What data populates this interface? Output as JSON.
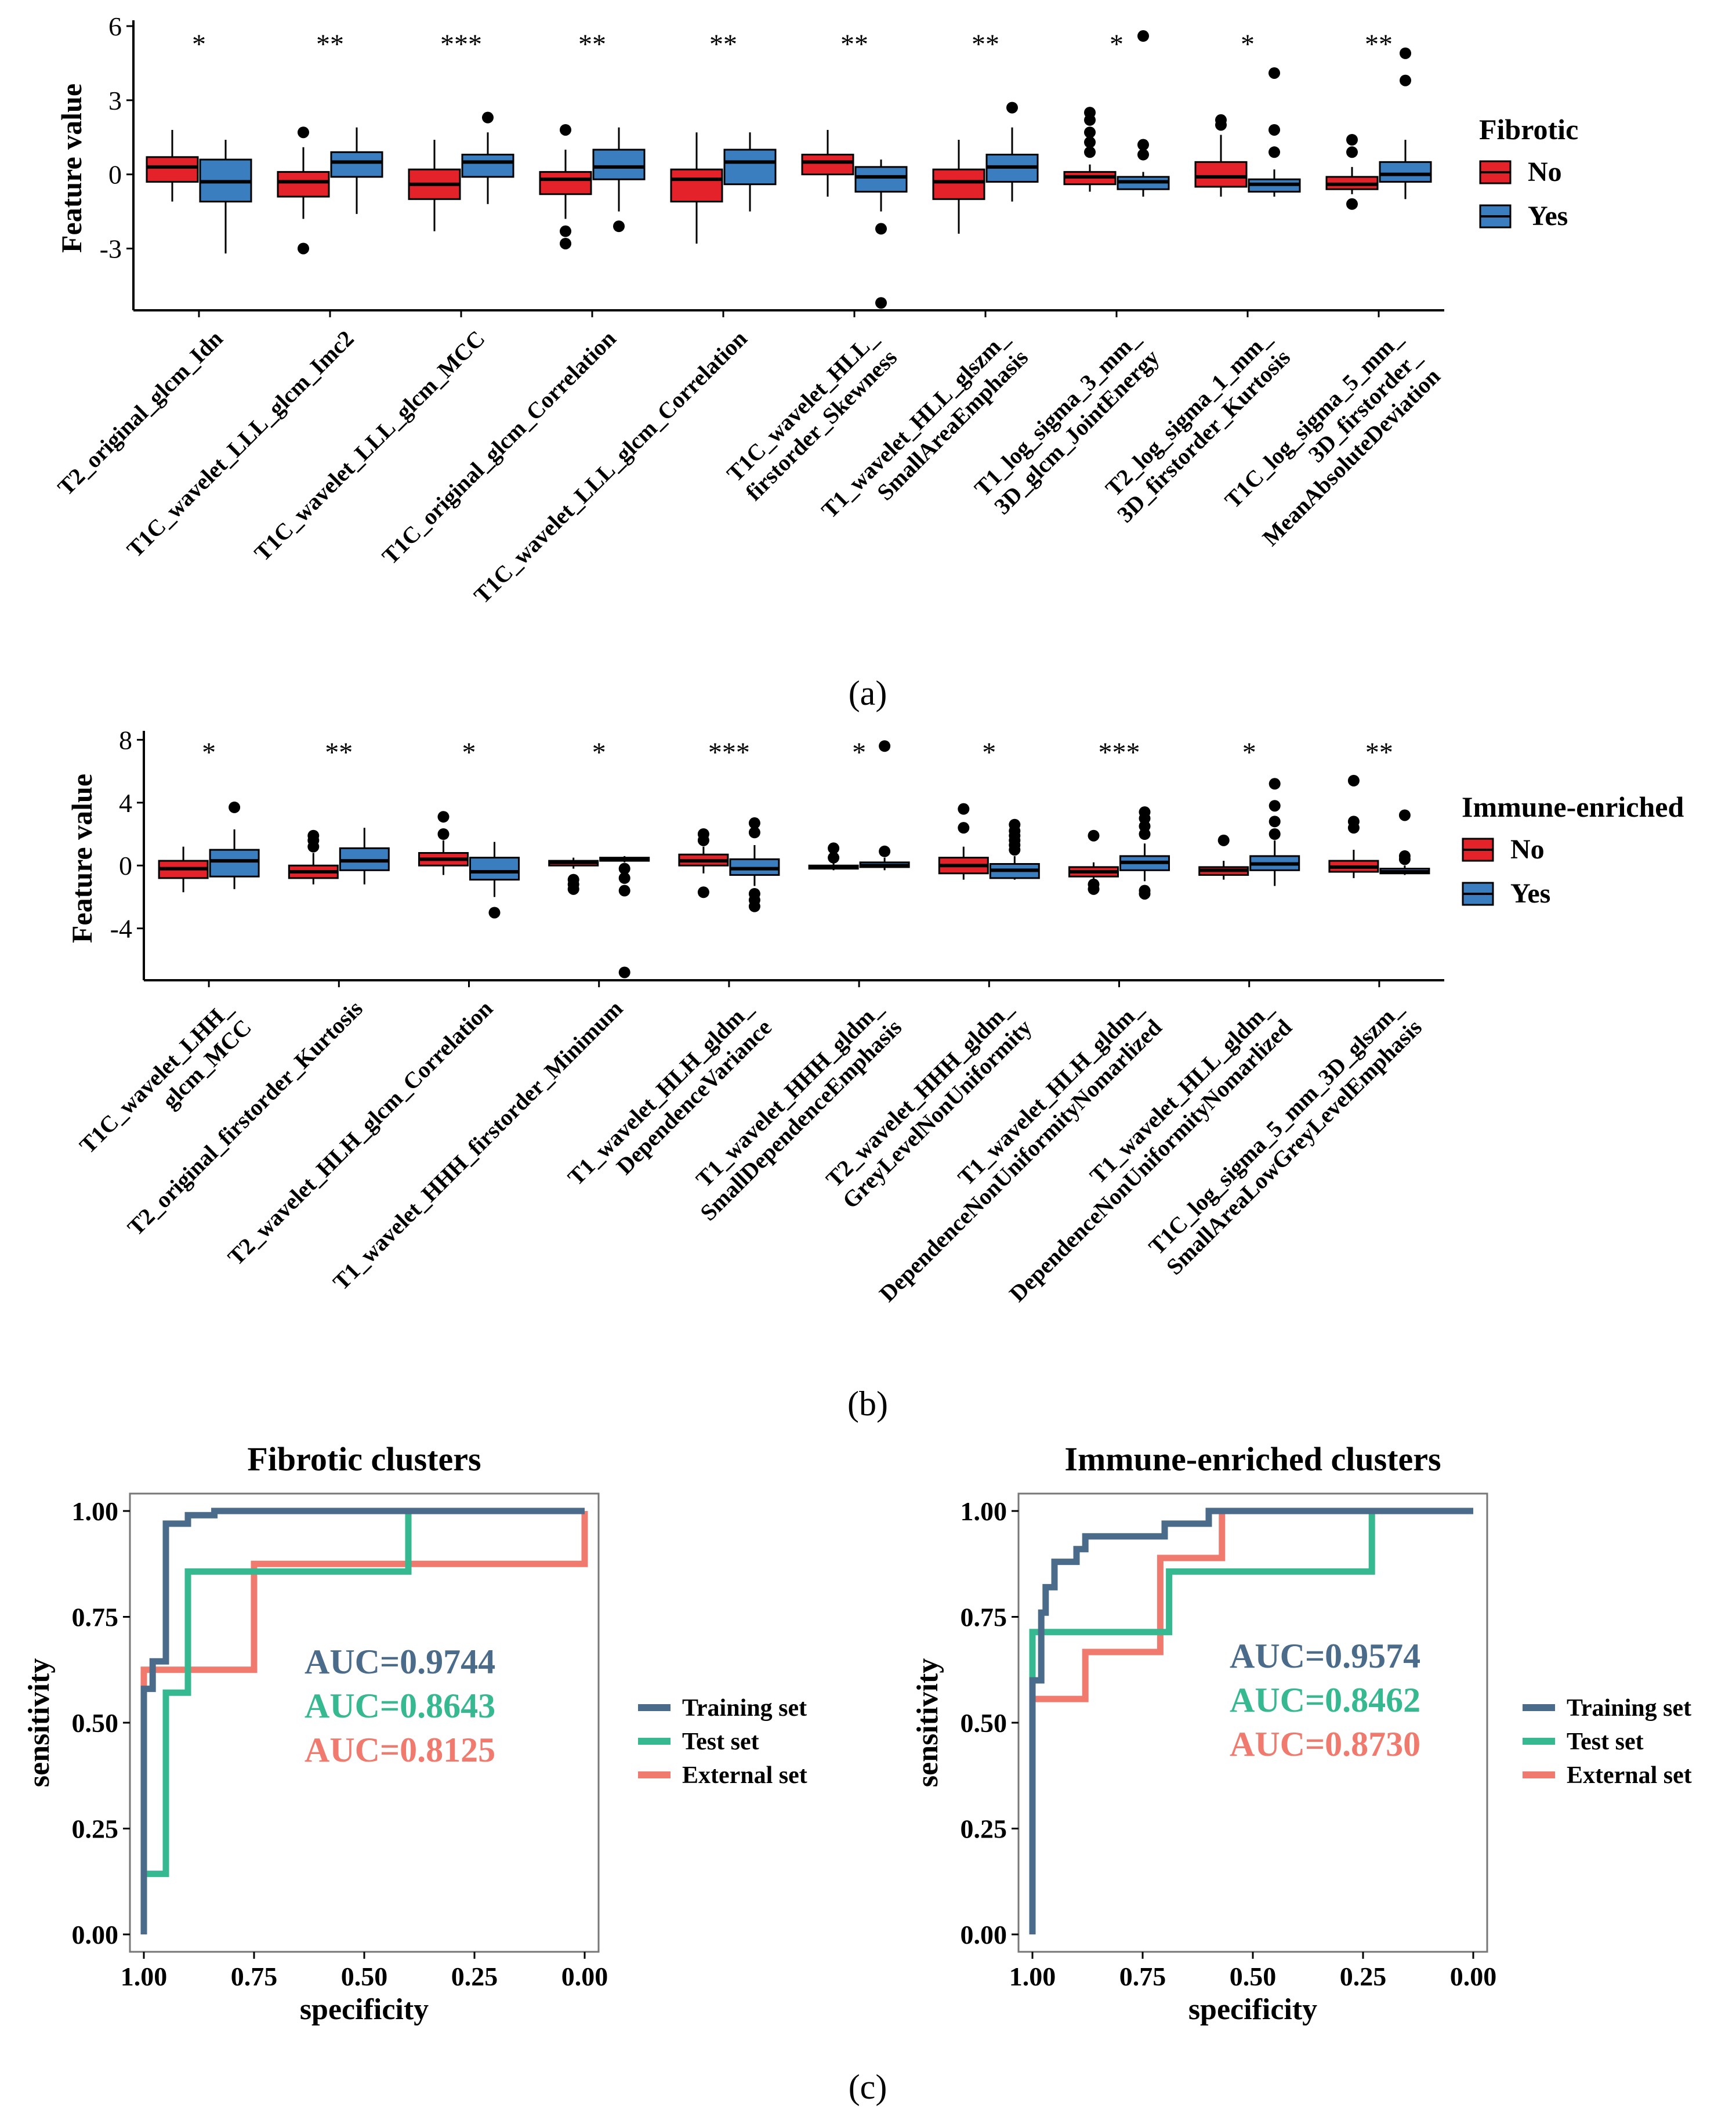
{
  "colors": {
    "no_fill": "#E4222A",
    "yes_fill": "#3A7EBF",
    "training": "#4A6B8A",
    "test": "#36B890",
    "external": "#F07A6E",
    "ink": "#000000"
  },
  "chart_data": [
    {
      "id": "a",
      "type": "box",
      "panel_label": "(a)",
      "ylabel": "Feature value",
      "ylim": [
        -5.5,
        6
      ],
      "yticks": [
        6,
        3,
        0,
        -3
      ],
      "ytick_labels": [
        "6",
        "3",
        "0",
        "-3"
      ],
      "legend": {
        "title": "Fibrotic",
        "entries": [
          "No",
          "Yes"
        ]
      },
      "categories": [
        {
          "label": [
            "T2_original_glcm_Idn"
          ],
          "sig": "*",
          "no": {
            "q1": -0.3,
            "med": 0.3,
            "q3": 0.7,
            "lo": -1.1,
            "hi": 1.8,
            "out": []
          },
          "yes": {
            "q1": -1.1,
            "med": -0.3,
            "q3": 0.6,
            "lo": -3.2,
            "hi": 1.4,
            "out": []
          }
        },
        {
          "label": [
            "T1C_wavelet_LLL_glcm_Imc2"
          ],
          "sig": "**",
          "no": {
            "q1": -0.9,
            "med": -0.3,
            "q3": 0.1,
            "lo": -1.8,
            "hi": 1.1,
            "out": [
              1.7,
              -3.0
            ]
          },
          "yes": {
            "q1": -0.1,
            "med": 0.5,
            "q3": 0.9,
            "lo": -1.6,
            "hi": 1.9,
            "out": []
          }
        },
        {
          "label": [
            "T1C_wavelet_LLL_glcm_MCC"
          ],
          "sig": "***",
          "no": {
            "q1": -1.0,
            "med": -0.4,
            "q3": 0.2,
            "lo": -2.3,
            "hi": 1.4,
            "out": []
          },
          "yes": {
            "q1": -0.1,
            "med": 0.5,
            "q3": 0.8,
            "lo": -1.2,
            "hi": 1.7,
            "out": [
              2.3
            ]
          }
        },
        {
          "label": [
            "T1C_original_glcm_Correlation"
          ],
          "sig": "**",
          "no": {
            "q1": -0.8,
            "med": -0.2,
            "q3": 0.1,
            "lo": -1.8,
            "hi": 1.0,
            "out": [
              1.8,
              -2.3,
              -2.8
            ]
          },
          "yes": {
            "q1": -0.2,
            "med": 0.3,
            "q3": 1.0,
            "lo": -1.5,
            "hi": 1.9,
            "out": [
              -2.1
            ]
          }
        },
        {
          "label": [
            "T1C_wavelet_LLL_glcm_Correlation"
          ],
          "sig": "**",
          "no": {
            "q1": -1.1,
            "med": -0.2,
            "q3": 0.2,
            "lo": -2.8,
            "hi": 1.7,
            "out": []
          },
          "yes": {
            "q1": -0.4,
            "med": 0.5,
            "q3": 1.0,
            "lo": -1.5,
            "hi": 1.7,
            "out": []
          }
        },
        {
          "label": [
            "T1C_wavelet_HLL_",
            "firstorder_Skewness"
          ],
          "sig": "**",
          "no": {
            "q1": 0.0,
            "med": 0.5,
            "q3": 0.8,
            "lo": -0.9,
            "hi": 1.8,
            "out": []
          },
          "yes": {
            "q1": -0.7,
            "med": -0.1,
            "q3": 0.3,
            "lo": -1.5,
            "hi": 0.6,
            "out": [
              -2.2,
              -5.2
            ]
          }
        },
        {
          "label": [
            "T1_wavelet_HLL_glszm_",
            "SmallAreaEmphasis"
          ],
          "sig": "**",
          "no": {
            "q1": -1.0,
            "med": -0.3,
            "q3": 0.2,
            "lo": -2.4,
            "hi": 1.4,
            "out": []
          },
          "yes": {
            "q1": -0.3,
            "med": 0.3,
            "q3": 0.8,
            "lo": -1.1,
            "hi": 1.9,
            "out": [
              2.7
            ]
          }
        },
        {
          "label": [
            "T1_log_sigma_3_mm_",
            "3D_glcm_JointEnergy"
          ],
          "sig": "*",
          "no": {
            "q1": -0.4,
            "med": -0.1,
            "q3": 0.1,
            "lo": -0.7,
            "hi": 0.4,
            "out": [
              0.9,
              1.3,
              1.7,
              2.2,
              2.5
            ]
          },
          "yes": {
            "q1": -0.6,
            "med": -0.3,
            "q3": -0.1,
            "lo": -0.9,
            "hi": 0.1,
            "out": [
              0.8,
              1.2,
              5.6
            ]
          }
        },
        {
          "label": [
            "T2_log_sigma_1_mm_",
            "3D_firstorder_Kurtosis"
          ],
          "sig": "*",
          "no": {
            "q1": -0.5,
            "med": -0.1,
            "q3": 0.5,
            "lo": -0.9,
            "hi": 1.6,
            "out": [
              2.0,
              2.2
            ]
          },
          "yes": {
            "q1": -0.7,
            "med": -0.4,
            "q3": -0.2,
            "lo": -0.9,
            "hi": 0.2,
            "out": [
              0.9,
              1.8,
              4.1
            ]
          }
        },
        {
          "label": [
            "T1C_log_sigma_5_mm_",
            "3D_firstorder_",
            "MeanAbsoluteDeviation"
          ],
          "sig": "**",
          "no": {
            "q1": -0.6,
            "med": -0.4,
            "q3": -0.1,
            "lo": -0.8,
            "hi": 0.3,
            "out": [
              0.9,
              1.4,
              -1.2
            ]
          },
          "yes": {
            "q1": -0.3,
            "med": 0.0,
            "q3": 0.5,
            "lo": -1.0,
            "hi": 1.4,
            "out": [
              3.8,
              4.9
            ]
          }
        }
      ]
    },
    {
      "id": "b",
      "type": "box",
      "panel_label": "(b)",
      "ylabel": "Feature value",
      "ylim": [
        -7.3,
        8.2
      ],
      "yticks": [
        8,
        4,
        0,
        -4
      ],
      "ytick_labels": [
        "8",
        "4",
        "0",
        "-4"
      ],
      "legend": {
        "title": "Immune-enriched",
        "entries": [
          "No",
          "Yes"
        ]
      },
      "categories": [
        {
          "label": [
            "T1C_wavelet_LHH_",
            "glcm_MCC"
          ],
          "sig": "*",
          "no": {
            "q1": -0.8,
            "med": -0.2,
            "q3": 0.3,
            "lo": -1.7,
            "hi": 1.2,
            "out": []
          },
          "yes": {
            "q1": -0.7,
            "med": 0.3,
            "q3": 1.0,
            "lo": -1.5,
            "hi": 2.3,
            "out": [
              3.7
            ]
          }
        },
        {
          "label": [
            "T2_original_firstorder_Kurtosis"
          ],
          "sig": "**",
          "no": {
            "q1": -0.8,
            "med": -0.4,
            "q3": 0.0,
            "lo": -1.2,
            "hi": 0.8,
            "out": [
              1.2,
              1.6,
              1.9
            ]
          },
          "yes": {
            "q1": -0.3,
            "med": 0.3,
            "q3": 1.1,
            "lo": -1.2,
            "hi": 2.4,
            "out": []
          }
        },
        {
          "label": [
            "T2_wavelet_HLH_glcm_Correlation"
          ],
          "sig": "*",
          "no": {
            "q1": 0.0,
            "med": 0.4,
            "q3": 0.8,
            "lo": -0.6,
            "hi": 1.6,
            "out": [
              2.0,
              3.1
            ]
          },
          "yes": {
            "q1": -0.9,
            "med": -0.4,
            "q3": 0.5,
            "lo": -2.0,
            "hi": 1.5,
            "out": [
              -3.0
            ]
          }
        },
        {
          "label": [
            "T1_wavelet_HHH_firstorder_Minimum"
          ],
          "sig": "*",
          "no": {
            "q1": 0.0,
            "med": 0.2,
            "q3": 0.3,
            "lo": -0.2,
            "hi": 0.5,
            "out": [
              -0.9,
              -1.2,
              -1.5
            ]
          },
          "yes": {
            "q1": 0.3,
            "med": 0.4,
            "q3": 0.5,
            "lo": 0.2,
            "hi": 0.6,
            "out": [
              -0.2,
              -0.8,
              -1.6,
              -6.8
            ]
          }
        },
        {
          "label": [
            "T1_wavelet_HLH_gldm_",
            "DependenceVariance"
          ],
          "sig": "***",
          "no": {
            "q1": 0.0,
            "med": 0.3,
            "q3": 0.7,
            "lo": -0.5,
            "hi": 1.2,
            "out": [
              1.6,
              2.0,
              -1.7
            ]
          },
          "yes": {
            "q1": -0.6,
            "med": -0.2,
            "q3": 0.4,
            "lo": -1.3,
            "hi": 1.3,
            "out": [
              2.1,
              2.7,
              -1.8,
              -2.2,
              -2.6
            ]
          }
        },
        {
          "label": [
            "T1_wavelet_HHH_gldm_",
            "SmallDependenceEmphasis"
          ],
          "sig": "*",
          "no": {
            "q1": -0.2,
            "med": -0.1,
            "q3": 0.0,
            "lo": -0.3,
            "hi": 0.2,
            "out": [
              0.5,
              1.1
            ]
          },
          "yes": {
            "q1": -0.1,
            "med": 0.0,
            "q3": 0.2,
            "lo": -0.3,
            "hi": 0.5,
            "out": [
              0.9,
              7.6
            ]
          }
        },
        {
          "label": [
            "T2_wavelet_HHH_gldm_",
            "GreyLevelNonUniformity"
          ],
          "sig": "*",
          "no": {
            "q1": -0.5,
            "med": 0.0,
            "q3": 0.5,
            "lo": -0.9,
            "hi": 1.2,
            "out": [
              2.4,
              3.6
            ]
          },
          "yes": {
            "q1": -0.8,
            "med": -0.3,
            "q3": 0.1,
            "lo": -0.9,
            "hi": 0.6,
            "out": [
              1.0,
              1.3,
              1.6,
              1.9,
              2.2,
              2.6
            ]
          }
        },
        {
          "label": [
            "T1_wavelet_HLH_gldm_",
            "DependenceNonUniformityNomarlized"
          ],
          "sig": "***",
          "no": {
            "q1": -0.7,
            "med": -0.4,
            "q3": -0.1,
            "lo": -0.9,
            "hi": 0.2,
            "out": [
              1.9,
              -1.2,
              -1.5
            ]
          },
          "yes": {
            "q1": -0.3,
            "med": 0.2,
            "q3": 0.6,
            "lo": -1.0,
            "hi": 1.4,
            "out": [
              2.0,
              2.5,
              3.0,
              3.4,
              -1.6,
              -1.8
            ]
          }
        },
        {
          "label": [
            "T1_wavelet_HLL_gldm_",
            "DependenceNonUniformityNomarlized"
          ],
          "sig": "*",
          "no": {
            "q1": -0.6,
            "med": -0.3,
            "q3": -0.1,
            "lo": -0.9,
            "hi": 0.3,
            "out": [
              1.6
            ]
          },
          "yes": {
            "q1": -0.3,
            "med": 0.1,
            "q3": 0.6,
            "lo": -1.3,
            "hi": 1.6,
            "out": [
              2.0,
              2.8,
              3.8,
              5.2
            ]
          }
        },
        {
          "label": [
            "T1C_log_sigma_5_mm_3D_glszm_",
            "SmallAreaLowGreyLevelEmphasis"
          ],
          "sig": "**",
          "no": {
            "q1": -0.4,
            "med": -0.1,
            "q3": 0.3,
            "lo": -0.8,
            "hi": 1.0,
            "out": [
              2.4,
              2.8,
              5.4
            ]
          },
          "yes": {
            "q1": -0.5,
            "med": -0.4,
            "q3": -0.2,
            "lo": -0.6,
            "hi": 0.0,
            "out": [
              0.4,
              0.6,
              3.2
            ]
          }
        }
      ]
    },
    {
      "id": "c1",
      "type": "line",
      "title": "Fibrotic clusters",
      "xlabel": "specificity",
      "ylabel": "sensitivity",
      "xlim": [
        1.0,
        0.0
      ],
      "ylim": [
        0.0,
        1.0
      ],
      "xticks": [
        "1.00",
        "0.75",
        "0.50",
        "0.25",
        "0.00"
      ],
      "yticks": [
        "1.00",
        "0.75",
        "0.50",
        "0.25",
        "0.00"
      ],
      "legend": [
        "Training set",
        "Test set",
        "External set"
      ],
      "auc": [
        "AUC=0.9744",
        "AUC=0.8643",
        "AUC=0.8125"
      ],
      "series": [
        {
          "name": "Training set",
          "points": [
            [
              1.0,
              0.0
            ],
            [
              1.0,
              0.58
            ],
            [
              0.98,
              0.58
            ],
            [
              0.98,
              0.645
            ],
            [
              0.95,
              0.645
            ],
            [
              0.95,
              0.97
            ],
            [
              0.9,
              0.97
            ],
            [
              0.9,
              0.99
            ],
            [
              0.84,
              0.99
            ],
            [
              0.84,
              1.0
            ],
            [
              0.0,
              1.0
            ]
          ]
        },
        {
          "name": "Test set",
          "points": [
            [
              1.0,
              0.0
            ],
            [
              1.0,
              0.143
            ],
            [
              0.95,
              0.143
            ],
            [
              0.95,
              0.571
            ],
            [
              0.9,
              0.571
            ],
            [
              0.9,
              0.857
            ],
            [
              0.4,
              0.857
            ],
            [
              0.4,
              1.0
            ],
            [
              0.0,
              1.0
            ]
          ]
        },
        {
          "name": "External set",
          "points": [
            [
              1.0,
              0.0
            ],
            [
              1.0,
              0.625
            ],
            [
              0.75,
              0.625
            ],
            [
              0.75,
              0.875
            ],
            [
              0.0,
              0.875
            ],
            [
              0.0,
              1.0
            ]
          ]
        }
      ]
    },
    {
      "id": "c2",
      "type": "line",
      "title": "Immune-enriched clusters",
      "xlabel": "specificity",
      "ylabel": "sensitivity",
      "xlim": [
        1.0,
        0.0
      ],
      "ylim": [
        0.0,
        1.0
      ],
      "xticks": [
        "1.00",
        "0.75",
        "0.50",
        "0.25",
        "0.00"
      ],
      "yticks": [
        "1.00",
        "0.75",
        "0.50",
        "0.25",
        "0.00"
      ],
      "legend": [
        "Training set",
        "Test set",
        "External set"
      ],
      "auc": [
        "AUC=0.9574",
        "AUC=0.8462",
        "AUC=0.8730"
      ],
      "series": [
        {
          "name": "Training set",
          "points": [
            [
              1.0,
              0.0
            ],
            [
              1.0,
              0.6
            ],
            [
              0.98,
              0.6
            ],
            [
              0.98,
              0.76
            ],
            [
              0.97,
              0.76
            ],
            [
              0.97,
              0.82
            ],
            [
              0.95,
              0.82
            ],
            [
              0.95,
              0.88
            ],
            [
              0.9,
              0.88
            ],
            [
              0.9,
              0.91
            ],
            [
              0.88,
              0.91
            ],
            [
              0.88,
              0.94
            ],
            [
              0.7,
              0.94
            ],
            [
              0.7,
              0.97
            ],
            [
              0.6,
              0.97
            ],
            [
              0.6,
              1.0
            ],
            [
              0.0,
              1.0
            ]
          ]
        },
        {
          "name": "Test set",
          "points": [
            [
              1.0,
              0.0
            ],
            [
              1.0,
              0.714
            ],
            [
              0.85,
              0.714
            ],
            [
              0.85,
              0.714
            ],
            [
              0.69,
              0.714
            ],
            [
              0.69,
              0.857
            ],
            [
              0.23,
              0.857
            ],
            [
              0.23,
              1.0
            ],
            [
              0.0,
              1.0
            ]
          ]
        },
        {
          "name": "External set",
          "points": [
            [
              1.0,
              0.0
            ],
            [
              1.0,
              0.556
            ],
            [
              0.88,
              0.556
            ],
            [
              0.88,
              0.667
            ],
            [
              0.71,
              0.667
            ],
            [
              0.71,
              0.889
            ],
            [
              0.57,
              0.889
            ],
            [
              0.57,
              1.0
            ],
            [
              0.0,
              1.0
            ]
          ]
        }
      ]
    }
  ],
  "panel_c_label": "(c)"
}
